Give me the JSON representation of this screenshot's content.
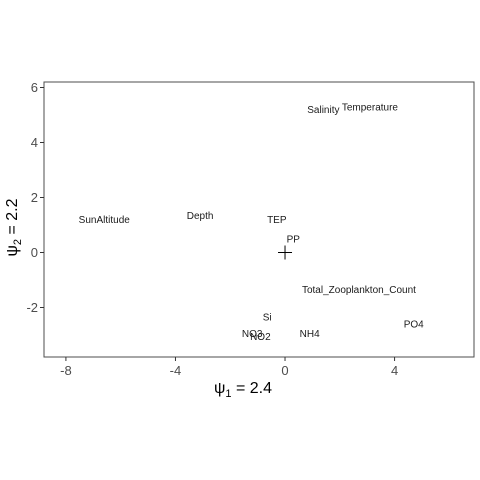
{
  "chart_data": {
    "type": "scatter",
    "title": "",
    "xlabel": {
      "symbol": "ψ",
      "sub": "1",
      "rest": " = 2.4"
    },
    "ylabel": {
      "symbol": "ψ",
      "sub": "2",
      "rest": " = 2.2"
    },
    "xlim": [
      -8.8,
      6.9
    ],
    "ylim": [
      -3.8,
      6.2
    ],
    "xticks": [
      -8,
      -4,
      0,
      4
    ],
    "yticks": [
      -2,
      0,
      2,
      4,
      6
    ],
    "grid": false,
    "origin_marker": {
      "x": 0,
      "y": 0
    },
    "points": [
      {
        "label": "Temperature",
        "x": 3.1,
        "y": 5.3
      },
      {
        "label": "Salinity",
        "x": 1.4,
        "y": 5.2
      },
      {
        "label": "SunAltitude",
        "x": -6.6,
        "y": 1.2
      },
      {
        "label": "Depth",
        "x": -3.1,
        "y": 1.35
      },
      {
        "label": "TEP",
        "x": -0.3,
        "y": 1.2
      },
      {
        "label": "PP",
        "x": 0.3,
        "y": 0.5
      },
      {
        "label": "Total_Zooplankton_Count",
        "x": 2.7,
        "y": -1.35
      },
      {
        "label": "Si",
        "x": -0.65,
        "y": -2.35
      },
      {
        "label": "NO3",
        "x": -1.2,
        "y": -2.95
      },
      {
        "label": "NO2",
        "x": -0.9,
        "y": -3.05
      },
      {
        "label": "NH4",
        "x": 0.9,
        "y": -2.95
      },
      {
        "label": "PO4",
        "x": 4.7,
        "y": -2.6
      }
    ]
  }
}
